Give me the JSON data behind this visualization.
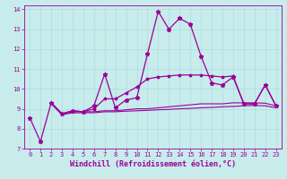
{
  "xlabel": "Windchill (Refroidissement éolien,°C)",
  "background_color": "#c8ecec",
  "line_color": "#990099",
  "xlim": [
    -0.5,
    23.5
  ],
  "ylim": [
    7,
    14.2
  ],
  "yticks": [
    7,
    8,
    9,
    10,
    11,
    12,
    13,
    14
  ],
  "xticks": [
    0,
    1,
    2,
    3,
    4,
    5,
    6,
    7,
    8,
    9,
    10,
    11,
    12,
    13,
    14,
    15,
    16,
    17,
    18,
    19,
    20,
    21,
    22,
    23
  ],
  "series1_x": [
    0,
    1,
    2,
    3,
    4,
    5,
    6,
    7,
    8,
    9,
    10,
    11,
    12,
    13,
    14,
    15,
    16,
    17,
    18,
    19,
    20,
    21,
    22,
    23
  ],
  "series1_y": [
    8.55,
    7.35,
    9.3,
    8.75,
    8.9,
    8.85,
    9.15,
    10.75,
    9.05,
    9.45,
    9.55,
    11.75,
    13.9,
    13.0,
    13.55,
    13.25,
    11.65,
    10.3,
    10.2,
    10.6,
    9.25,
    9.25,
    10.2,
    9.15
  ],
  "series2_x": [
    2,
    3,
    4,
    5,
    6,
    7,
    8,
    9,
    10,
    11,
    12,
    13,
    14,
    15,
    16,
    17,
    18,
    19,
    20,
    21,
    22,
    23
  ],
  "series2_y": [
    9.3,
    8.75,
    8.9,
    8.85,
    9.0,
    9.5,
    9.5,
    9.8,
    10.1,
    10.5,
    10.6,
    10.65,
    10.7,
    10.7,
    10.7,
    10.65,
    10.6,
    10.65,
    9.25,
    9.25,
    10.2,
    9.15
  ],
  "series3_x": [
    2,
    3,
    4,
    5,
    6,
    7,
    8,
    9,
    10,
    11,
    12,
    13,
    14,
    15,
    16,
    17,
    18,
    19,
    20,
    21,
    22,
    23
  ],
  "series3_y": [
    9.3,
    8.75,
    8.85,
    8.85,
    8.85,
    8.9,
    8.9,
    8.95,
    9.0,
    9.0,
    9.05,
    9.1,
    9.15,
    9.2,
    9.25,
    9.25,
    9.25,
    9.3,
    9.3,
    9.3,
    9.28,
    9.15
  ],
  "series4_x": [
    2,
    3,
    4,
    5,
    6,
    7,
    8,
    9,
    10,
    11,
    12,
    13,
    14,
    15,
    16,
    17,
    18,
    19,
    20,
    21,
    22,
    23
  ],
  "series4_y": [
    9.25,
    8.7,
    8.8,
    8.8,
    8.8,
    8.85,
    8.85,
    8.88,
    8.9,
    8.92,
    8.95,
    8.97,
    9.0,
    9.02,
    9.05,
    9.07,
    9.1,
    9.12,
    9.15,
    9.17,
    9.15,
    9.05
  ],
  "grid_color": "#aadddd",
  "tick_color": "#990099",
  "tick_fontsize": 5.0,
  "xlabel_fontsize": 6.0
}
